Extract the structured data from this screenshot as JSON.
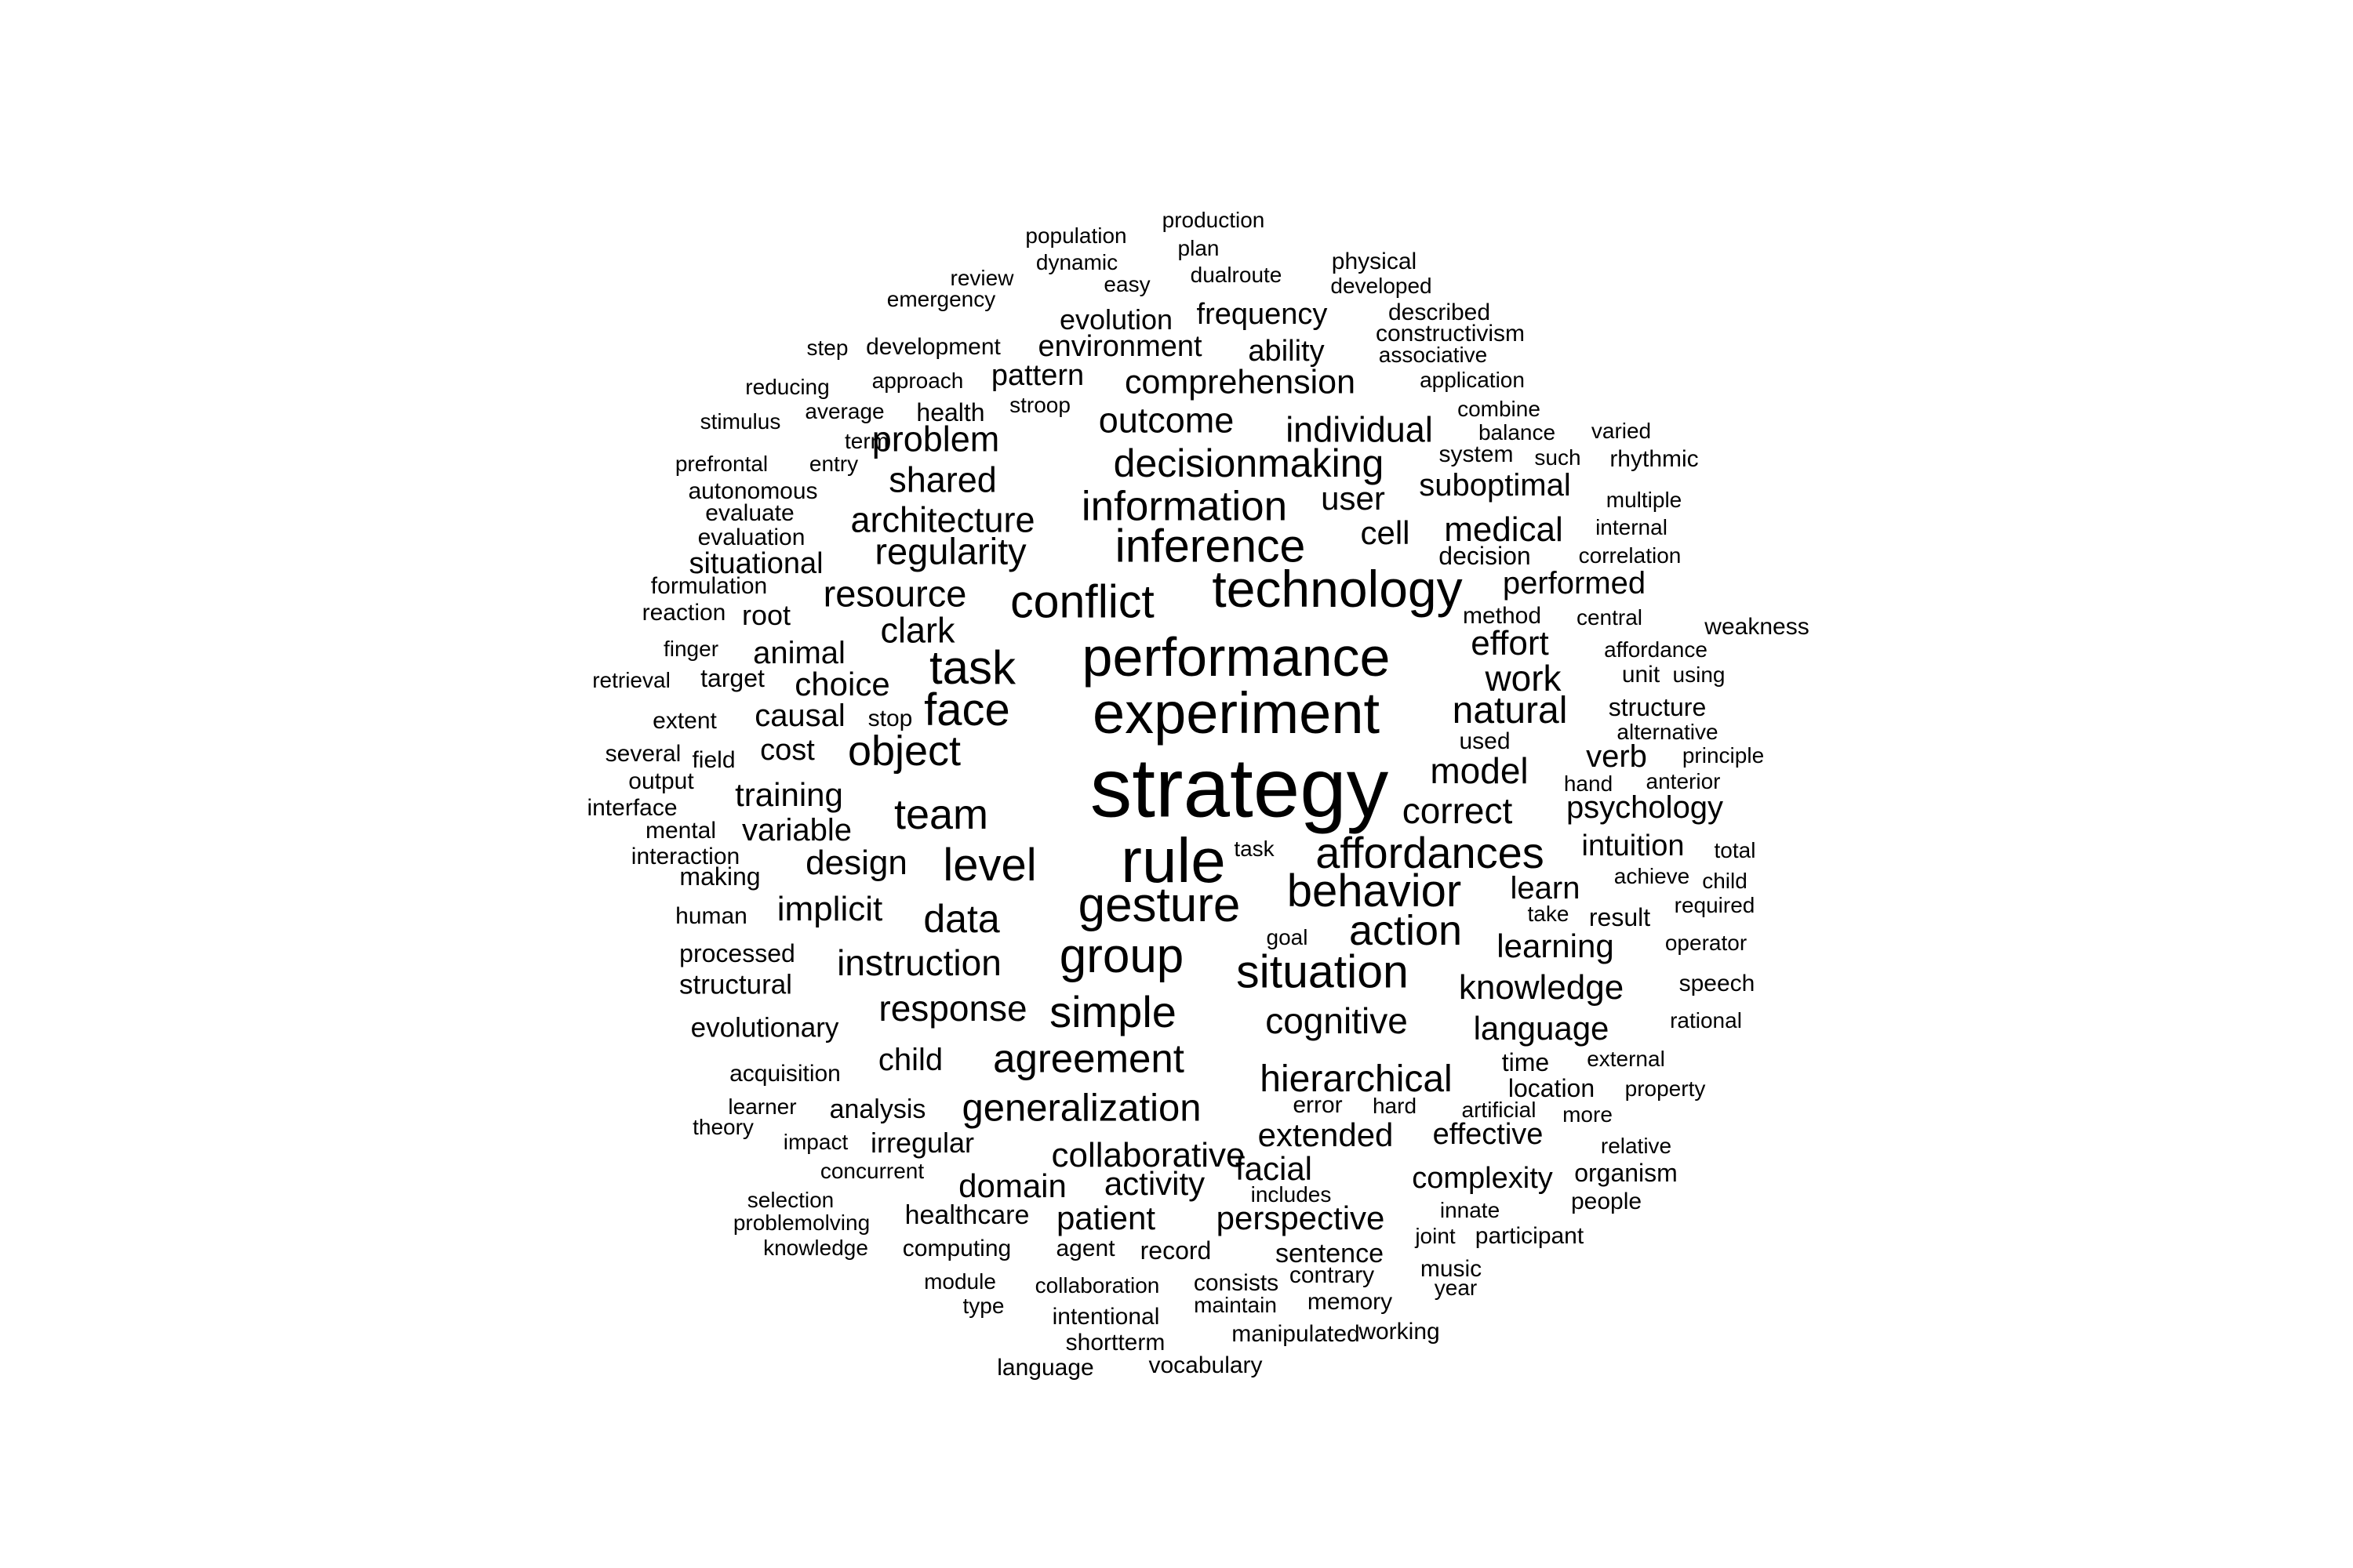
{
  "word_cloud": {
    "text_color": "#000000",
    "background_color": "#ffffff",
    "words": [
      "strategy",
      "rule",
      "experiment",
      "performance",
      "technology",
      "inference",
      "conflict",
      "task",
      "face",
      "gesture",
      "group",
      "situation",
      "affordances",
      "behavior",
      "simple",
      "level",
      "team",
      "object",
      "data",
      "action",
      "information",
      "decisionmaking",
      "agreement",
      "generalization",
      "hierarchical",
      "regularity",
      "architecture",
      "shared",
      "problem",
      "outcome",
      "individual",
      "comprehension",
      "resource",
      "clark",
      "animal",
      "choice",
      "causal",
      "cost",
      "training",
      "variable",
      "design",
      "implicit",
      "instruction",
      "response",
      "cognitive",
      "knowledge",
      "language",
      "learning",
      "learn",
      "intuition",
      "psychology",
      "verb",
      "model",
      "correct",
      "natural",
      "work",
      "effort",
      "medical",
      "cell",
      "user",
      "suboptimal",
      "performed",
      "collaborative",
      "domain",
      "activity",
      "patient",
      "perspective",
      "facial",
      "extended",
      "effective",
      "complexity",
      "sentence",
      "record",
      "agent",
      "computing",
      "healthcare",
      "irregular",
      "analysis",
      "child",
      "evolutionary",
      "structural",
      "processed",
      "human",
      "making",
      "interaction",
      "mental",
      "interface",
      "output",
      "field",
      "several",
      "extent",
      "stop",
      "target",
      "retrieval",
      "finger",
      "root",
      "reaction",
      "formulation",
      "situational",
      "evaluation",
      "evaluate",
      "autonomous",
      "prefrontal",
      "entry",
      "term",
      "health",
      "average",
      "stimulus",
      "reducing",
      "approach",
      "pattern",
      "stroop",
      "step",
      "development",
      "environment",
      "evolution",
      "ability",
      "frequency",
      "emergency",
      "review",
      "population",
      "dynamic",
      "production",
      "plan",
      "easy",
      "dualroute",
      "physical",
      "developed",
      "described",
      "constructivism",
      "associative",
      "application",
      "combine",
      "balance",
      "varied",
      "system",
      "such",
      "rhythmic",
      "multiple",
      "internal",
      "decision",
      "correlation",
      "method",
      "central",
      "weakness",
      "affordance",
      "unit",
      "using",
      "structure",
      "alternative",
      "used",
      "principle",
      "hand",
      "anterior",
      "total",
      "achieve",
      "child",
      "required",
      "take",
      "result",
      "operator",
      "speech",
      "rational",
      "goal",
      "task",
      "time",
      "external",
      "location",
      "property",
      "more",
      "error",
      "hard",
      "artificial",
      "relative",
      "organism",
      "includes",
      "innate",
      "people",
      "joint",
      "participant",
      "music",
      "year",
      "contrary",
      "memory",
      "consists",
      "maintain",
      "collaboration",
      "module",
      "type",
      "intentional",
      "shortterm",
      "manipulated",
      "working",
      "language",
      "vocabulary",
      "acquisition",
      "learner",
      "theory",
      "impact",
      "concurrent",
      "selection",
      "problemolving",
      "knowledge"
    ]
  }
}
